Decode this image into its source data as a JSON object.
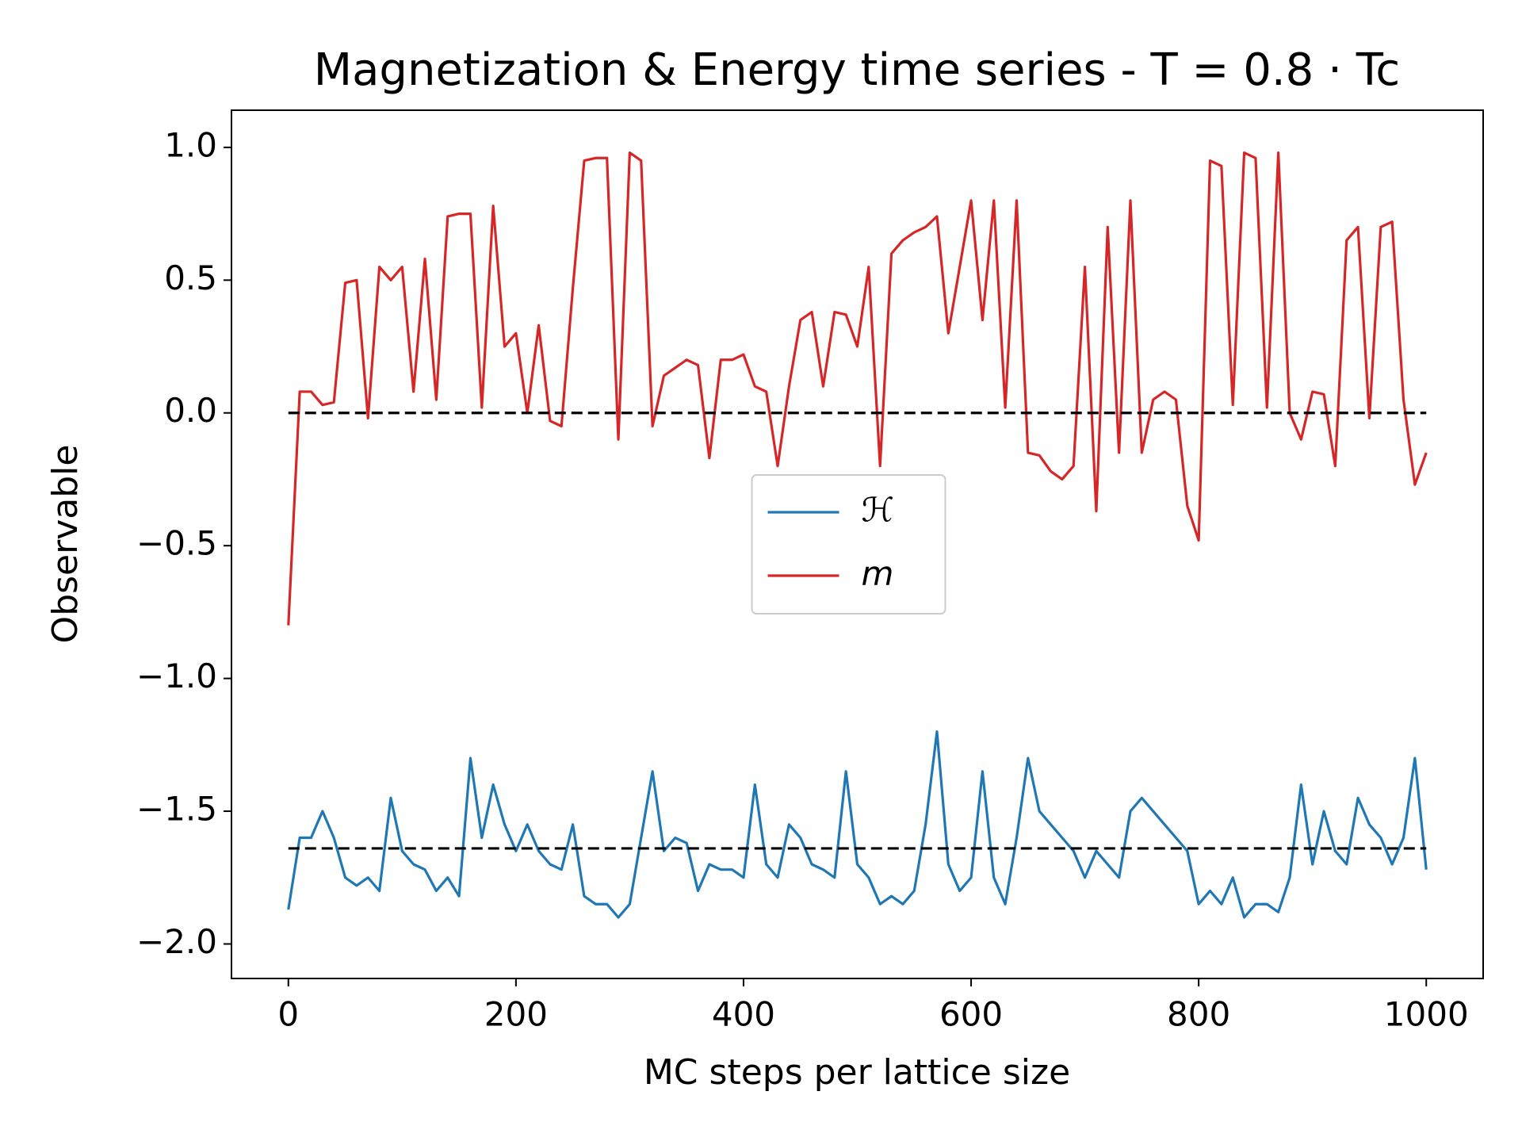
{
  "chart_data": {
    "type": "line",
    "title": "Magnetization & Energy time series - T = 0.8 · Tc",
    "x_label": "MC steps per lattice size",
    "y_label": "Observable",
    "x": [
      0,
      10,
      20,
      30,
      40,
      50,
      60,
      70,
      80,
      90,
      100,
      110,
      120,
      130,
      140,
      150,
      160,
      170,
      180,
      190,
      200,
      210,
      220,
      230,
      240,
      250,
      260,
      270,
      280,
      290,
      300,
      310,
      320,
      330,
      340,
      350,
      360,
      370,
      380,
      390,
      400,
      410,
      420,
      430,
      440,
      450,
      460,
      470,
      480,
      490,
      500,
      510,
      520,
      530,
      540,
      550,
      560,
      570,
      580,
      590,
      600,
      610,
      620,
      630,
      640,
      650,
      660,
      670,
      680,
      690,
      700,
      710,
      720,
      730,
      740,
      750,
      760,
      770,
      780,
      790,
      800,
      810,
      820,
      830,
      840,
      850,
      860,
      870,
      880,
      890,
      900,
      910,
      920,
      930,
      940,
      950,
      960,
      970,
      980,
      990,
      1000
    ],
    "series": [
      {
        "name": "ℋ",
        "color": "#1f77b4",
        "values": [
          -1.87,
          -1.6,
          -1.6,
          -1.5,
          -1.6,
          -1.75,
          -1.78,
          -1.75,
          -1.8,
          -1.45,
          -1.65,
          -1.7,
          -1.72,
          -1.8,
          -1.75,
          -1.82,
          -1.3,
          -1.6,
          -1.4,
          -1.55,
          -1.65,
          -1.55,
          -1.65,
          -1.7,
          -1.72,
          -1.55,
          -1.82,
          -1.85,
          -1.85,
          -1.9,
          -1.85,
          -1.6,
          -1.35,
          -1.65,
          -1.6,
          -1.62,
          -1.8,
          -1.7,
          -1.72,
          -1.72,
          -1.75,
          -1.4,
          -1.7,
          -1.75,
          -1.55,
          -1.6,
          -1.7,
          -1.72,
          -1.75,
          -1.35,
          -1.7,
          -1.75,
          -1.85,
          -1.82,
          -1.85,
          -1.8,
          -1.55,
          -1.2,
          -1.7,
          -1.8,
          -1.75,
          -1.35,
          -1.75,
          -1.85,
          -1.6,
          -1.3,
          -1.5,
          -1.55,
          -1.6,
          -1.65,
          -1.75,
          -1.65,
          -1.7,
          -1.75,
          -1.5,
          -1.45,
          -1.5,
          -1.55,
          -1.6,
          -1.65,
          -1.85,
          -1.8,
          -1.85,
          -1.75,
          -1.9,
          -1.85,
          -1.85,
          -1.88,
          -1.75,
          -1.4,
          -1.7,
          -1.5,
          -1.65,
          -1.7,
          -1.45,
          -1.55,
          -1.6,
          -1.7,
          -1.6,
          -1.3,
          -1.72
        ]
      },
      {
        "name": "m",
        "color": "#d62728",
        "values": [
          -0.8,
          0.08,
          0.08,
          0.03,
          0.04,
          0.49,
          0.5,
          -0.02,
          0.55,
          0.5,
          0.55,
          0.08,
          0.58,
          0.05,
          0.74,
          0.75,
          0.75,
          0.02,
          0.78,
          0.25,
          0.3,
          0.0,
          0.33,
          -0.03,
          -0.05,
          0.47,
          0.95,
          0.96,
          0.96,
          -0.1,
          0.98,
          0.95,
          -0.05,
          0.14,
          0.17,
          0.2,
          0.18,
          -0.17,
          0.2,
          0.2,
          0.22,
          0.1,
          0.08,
          -0.2,
          0.1,
          0.35,
          0.38,
          0.1,
          0.38,
          0.37,
          0.25,
          0.55,
          -0.2,
          0.6,
          0.65,
          0.68,
          0.7,
          0.74,
          0.3,
          0.55,
          0.8,
          0.35,
          0.8,
          0.02,
          0.8,
          -0.15,
          -0.16,
          -0.22,
          -0.25,
          -0.2,
          0.55,
          -0.37,
          0.7,
          -0.15,
          0.8,
          -0.15,
          0.05,
          0.08,
          0.05,
          -0.35,
          -0.48,
          0.95,
          0.93,
          0.03,
          0.98,
          0.96,
          0.02,
          0.98,
          0.0,
          -0.1,
          0.08,
          0.07,
          -0.2,
          0.65,
          0.7,
          -0.02,
          0.7,
          0.72,
          0.05,
          -0.27,
          -0.15
        ]
      }
    ],
    "hlines": [
      {
        "value": 0.0,
        "color": "#000000"
      },
      {
        "value": -1.64,
        "color": "#000000"
      }
    ],
    "xlim": [
      -50,
      1050
    ],
    "ylim": [
      -2.13,
      1.14
    ],
    "xticks": [
      0,
      200,
      400,
      600,
      800,
      1000
    ],
    "yticks": [
      {
        "value": 1,
        "label": "1.0"
      },
      0.5,
      {
        "value": 0,
        "label": "0.0"
      },
      {
        "value": -0.5,
        "label": "−0.5"
      },
      {
        "value": -1,
        "label": "−1.0"
      },
      {
        "value": -1.5,
        "label": "−1.5"
      },
      {
        "value": -2,
        "label": "−2.0"
      }
    ],
    "legend_position": "center"
  }
}
